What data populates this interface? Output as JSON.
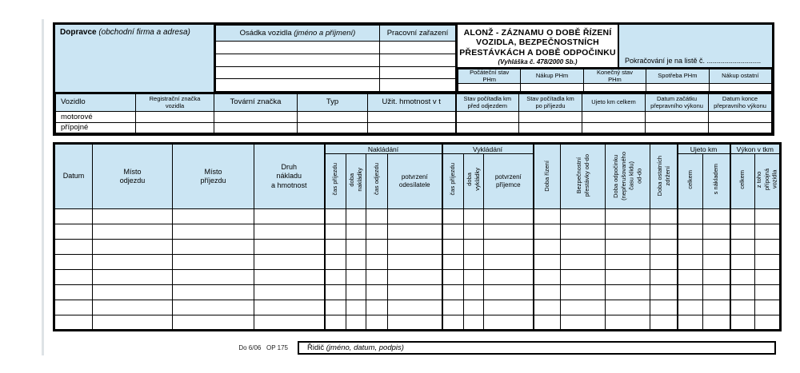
{
  "colors": {
    "header_fill": "#cbe5f3",
    "line": "#000000"
  },
  "top": {
    "dopravce_bold": "Dopravce",
    "dopravce_italic": " (obchodní firma a adresa)",
    "osadka_header": "Osádka vozidla ",
    "osadka_header_italic": "(jméno a příjmení)",
    "pracovni_header": "Pracovní zařazení",
    "crew_rows": 4,
    "title_main": "ALONŽ - ZÁZNAMU O DOBĚ ŘÍZENÍ\nVOZIDLA,  BEZPEČNOSTNÍCH\nPŘESTÁVKÁCH A DOBĚ ODPOČINKU",
    "title_sub": "(Vyhláška č. 478/2000 Sb.)",
    "pokracovani": "Pokračování je na listě č. ...........................",
    "phm_headers": [
      "Počáteční stav\nPHm",
      "Nákup PHm",
      "Konečný stav\nPHm",
      "Spotřeba PHm",
      "Nákup ostatní"
    ],
    "vozidlo_headers": [
      "Vozidlo",
      "Registrační značka\nvozidla",
      "Tovární značka",
      "Typ",
      "Užit. hmotnost v t"
    ],
    "km_headers": [
      "Stav počítadla km\npřed odjezdem",
      "Stav počítadla km\npo příjezdu",
      "Ujeto km celkem",
      "Datum začátku\npřepravního výkonu",
      "Datum konce\npřepravního výkonu"
    ],
    "vozidlo_rows": [
      "motorové",
      "přípojné"
    ]
  },
  "main": {
    "datum": "Datum",
    "misto_odjezdu": "Místo\nodjezdu",
    "misto_prijezdu": "Místo\npříjezdu",
    "druh": "Druh\nnákladu\na hmotnost",
    "nakladani": "Nakládání",
    "vykladani": "Vykládání",
    "nak_cas_prijezdu": "čas příjezdu",
    "nak_doba": "doba\nnakládky",
    "nak_cas_odjezdu": "čas odjezdu",
    "nak_potvrzeni": "potvrzení\nodesílatele",
    "vyk_cas_prijezdu": "čas příjezdu",
    "vyk_doba": "doba\nvykládky",
    "vyk_potvrzeni": "potvrzení\npříjemce",
    "doba_rizeni": "Doba řízení",
    "bezpecnostni": "Bezpečnostní\npřestávky od-do",
    "doba_odpocinku": "Doba odpočinku\n(nepřerušovaného\nčasu klidu)\nod-do",
    "doba_ostatnich": "Doba ostatních\nzdržení",
    "ujeto_km": "Ujeto km",
    "vykon_tkm": "Výkon v tkm",
    "ujeto_celkem": "celkem",
    "ujeto_s_nakladem": "s nákladem",
    "vykon_celkem": "celkem",
    "vykon_z_toho": "z toho\npřípojná\nvozidla",
    "body_rows": 8,
    "body_cols": 19
  },
  "footer": {
    "form_code": "Do 6/06   OP 175",
    "ridic": "Řidič ",
    "ridic_italic": "(jméno, datum, podpis)"
  }
}
